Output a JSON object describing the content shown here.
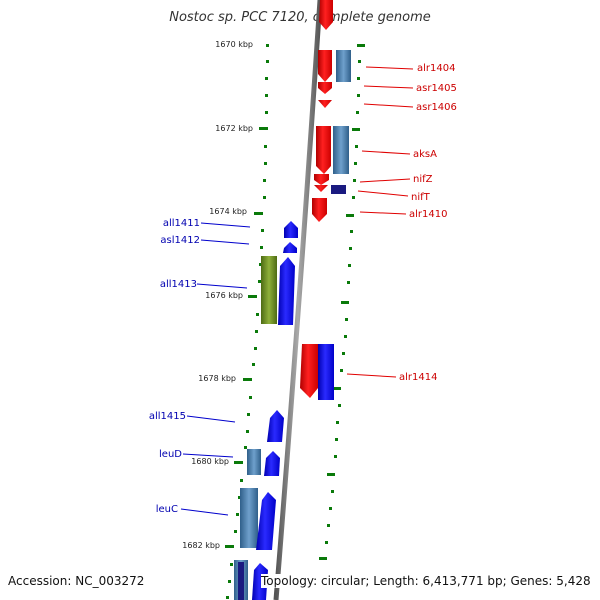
{
  "title": "Nostoc sp. PCC 7120, complete genome",
  "footer": {
    "accession": "Accession: NC_003272",
    "topology": "Topology: circular; Length: 6,413,771 bp; Genes: 5,428"
  },
  "scale_labels": [
    "1670 kbp",
    "1672 kbp",
    "1674 kbp",
    "1676 kbp",
    "1678 kbp",
    "1680 kbp",
    "1682 kbp"
  ],
  "colors": {
    "forward_strand": "#ff1a1a",
    "reverse_strand": "#1a1aff",
    "gene_outline_blue": "#4682b4",
    "green_gene": "#6b8e23",
    "dark_gene": "#1a1a80",
    "axis": "#7a7a7a",
    "ticks": "#0a7a0a"
  },
  "genes_forward": [
    {
      "label": "alr1404"
    },
    {
      "label": "asr1405"
    },
    {
      "label": "asr1406"
    },
    {
      "label": "aksA"
    },
    {
      "label": "nifZ"
    },
    {
      "label": "nifT"
    },
    {
      "label": "alr1410"
    },
    {
      "label": "alr1414"
    }
  ],
  "genes_reverse": [
    {
      "label": "all1411"
    },
    {
      "label": "asl1412"
    },
    {
      "label": "all1413"
    },
    {
      "label": "all1415"
    },
    {
      "label": "leuD"
    },
    {
      "label": "leuC"
    }
  ]
}
